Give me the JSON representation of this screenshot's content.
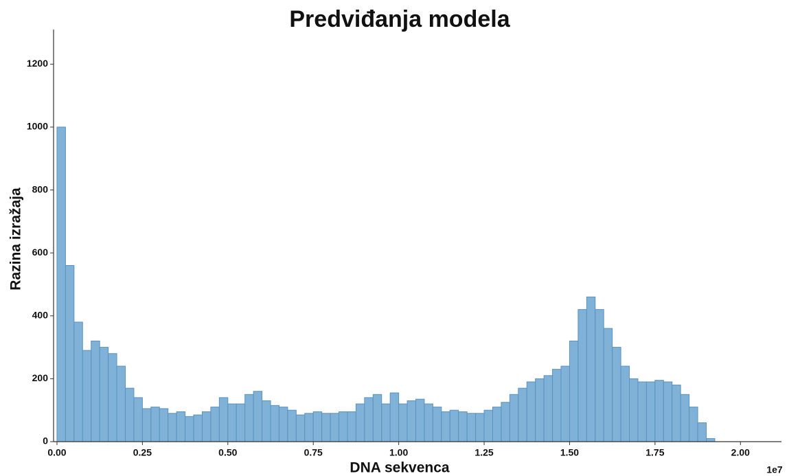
{
  "chart_data": {
    "type": "histogram",
    "title": "Predviđanja modela",
    "x_label": "DNA sekvenca",
    "y_label": "Razina izražaja",
    "x_offset_label": "1e7",
    "color": "#80b1d6",
    "edge_color": "#5a92c0",
    "bins": [
      0,
      250000,
      500000,
      750000,
      1000000,
      1250000,
      1500000,
      1750000,
      2000000,
      2250000,
      2500000,
      2750000,
      3000000,
      3250000,
      3500000,
      3750000,
      4000000,
      4250000,
      4500000,
      4750000,
      5000000,
      5250000,
      5500000,
      5750000,
      6000000,
      6250000,
      6500000,
      6750000,
      7000000,
      7250000,
      7500000,
      7750000,
      8000000,
      8250000,
      8500000,
      8750000,
      9000000,
      9250000,
      9500000,
      9750000,
      10000000,
      10250000,
      10500000,
      10750000,
      11000000,
      11250000,
      11500000,
      11750000,
      12000000,
      12250000,
      12500000,
      12750000,
      13000000,
      13250000,
      13500000,
      13750000,
      14000000,
      14250000,
      14500000,
      14750000,
      15000000,
      15250000,
      15500000,
      15750000,
      16000000,
      16250000,
      16500000,
      16750000,
      17000000,
      17250000,
      17500000,
      17750000,
      18000000,
      18250000,
      18500000,
      18750000,
      19000000,
      19250000
    ],
    "values": [
      1000,
      560,
      380,
      290,
      320,
      300,
      280,
      240,
      170,
      140,
      105,
      110,
      105,
      90,
      95,
      80,
      85,
      95,
      110,
      140,
      120,
      120,
      150,
      160,
      130,
      115,
      110,
      100,
      85,
      90,
      95,
      90,
      90,
      95,
      95,
      120,
      140,
      150,
      120,
      155,
      120,
      130,
      135,
      120,
      110,
      95,
      100,
      95,
      90,
      90,
      100,
      110,
      125,
      150,
      170,
      190,
      200,
      210,
      230,
      240,
      320,
      420,
      460,
      420,
      360,
      300,
      240,
      200,
      190,
      190,
      195,
      190,
      180,
      150,
      110,
      60,
      10
    ],
    "xlim": [
      -100000,
      21200000
    ],
    "ylim": [
      0,
      1310
    ],
    "xticks": [
      {
        "value": 0,
        "label": "0.00"
      },
      {
        "value": 2500000,
        "label": "0.25"
      },
      {
        "value": 5000000,
        "label": "0.50"
      },
      {
        "value": 7500000,
        "label": "0.75"
      },
      {
        "value": 10000000,
        "label": "1.00"
      },
      {
        "value": 12500000,
        "label": "1.25"
      },
      {
        "value": 15000000,
        "label": "1.50"
      },
      {
        "value": 17500000,
        "label": "1.75"
      },
      {
        "value": 20000000,
        "label": "2.00"
      }
    ],
    "yticks": [
      0,
      200,
      400,
      600,
      800,
      1000,
      1200
    ]
  }
}
